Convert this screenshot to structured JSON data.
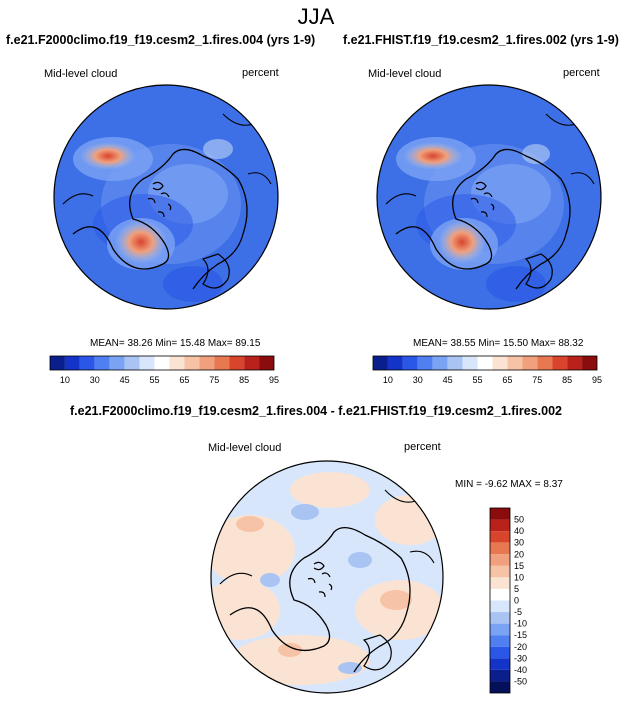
{
  "figure": {
    "season": "JJA",
    "colors": {
      "ocean_blue": "#3d6fe6",
      "deep_blue": "#1a3fd6",
      "light_blue": "#a9c4f3",
      "pale_blue": "#d8e6fb",
      "peach": "#f6d9c7",
      "salmon": "#f0a07c",
      "red": "#d8442c",
      "coast": "#000000"
    }
  },
  "panels": [
    {
      "title": "f.e21.F2000climo.f19_f19.cesm2_1.fires.004 (yrs 1-9)",
      "field": "Mid-level cloud",
      "units": "percent",
      "stats": "MEAN=  38.26  Min=  15.48  Max=  89.15"
    },
    {
      "title": "f.e21.FHIST.f19_f19.cesm2_1.fires.002 (yrs 1-9)",
      "field": "Mid-level cloud",
      "units": "percent",
      "stats": "MEAN=  38.55  Min=  15.50  Max=  88.32"
    }
  ],
  "diff": {
    "title": "f.e21.F2000climo.f19_f19.cesm2_1.fires.004 - f.e21.FHIST.f19_f19.cesm2_1.fires.002",
    "field": "Mid-level cloud",
    "units": "percent",
    "stats": "MIN =  -9.62 MAX =   8.37"
  },
  "colorbar_main": {
    "labels": [
      "10",
      "30",
      "45",
      "55",
      "65",
      "75",
      "85",
      "95"
    ],
    "colors": [
      "#0a1e8c",
      "#1433c8",
      "#2a57e8",
      "#4f7ff0",
      "#7ba3f4",
      "#a9c4f3",
      "#d8e6fb",
      "#ffffff",
      "#fbe3d3",
      "#f6c3a6",
      "#f0a07c",
      "#e8784f",
      "#d8442c",
      "#b8221a",
      "#8a0c0c"
    ]
  },
  "colorbar_diff": {
    "labels": [
      "50",
      "40",
      "30",
      "20",
      "15",
      "10",
      "5",
      "0",
      "-5",
      "-10",
      "-15",
      "-20",
      "-30",
      "-40",
      "-50"
    ],
    "colors": [
      "#8a0c0c",
      "#b8221a",
      "#d8442c",
      "#e8784f",
      "#f0a07c",
      "#f6c3a6",
      "#fbe3d3",
      "#ffffff",
      "#d8e6fb",
      "#a9c4f3",
      "#7ba3f4",
      "#4f7ff0",
      "#2a57e8",
      "#1433c8",
      "#0a1e8c",
      "#04105a"
    ]
  }
}
